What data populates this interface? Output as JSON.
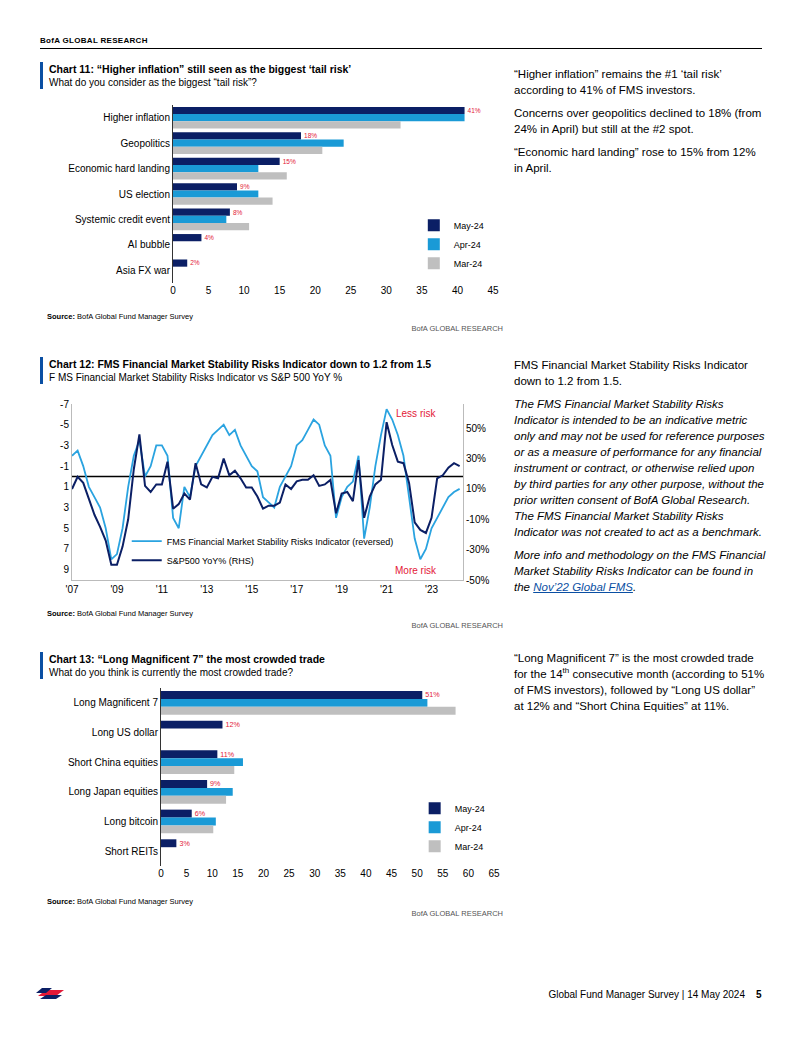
{
  "header": "BofA GLOBAL RESEARCH",
  "chart_data": [
    {
      "type": "bar",
      "title": "Chart 11: “Higher inflation” still seen as the biggest ‘tail risk’",
      "subtitle": "What do you consider as the biggest “tail risk”?",
      "source_label": "Source:",
      "source": "BofA Global Fund Manager Survey",
      "credit": "BofA GLOBAL RESEARCH",
      "orientation": "horizontal",
      "data_labels": true,
      "legend": "lower-right",
      "grid": false,
      "categories": [
        "Higher inflation",
        "Geopolitics",
        "Economic hard landing",
        "US election",
        "Systemic credit event",
        "AI bubble",
        "Asia FX war"
      ],
      "series": [
        {
          "name": "May-24",
          "color": "#0b1f65",
          "values": [
            41,
            18,
            15,
            9,
            8,
            4,
            2
          ],
          "value_labels": [
            "41%",
            "18%",
            "15%",
            "9%",
            "8%",
            "4%",
            "2%"
          ]
        },
        {
          "name": "Apr-24",
          "color": "#1a9ad6",
          "values": [
            41,
            24,
            12,
            12,
            7.5,
            null,
            null
          ]
        },
        {
          "name": "Mar-24",
          "color": "#bfbfbf",
          "values": [
            32,
            21,
            16,
            14,
            10.7,
            null,
            null
          ]
        }
      ],
      "xlim": [
        0,
        45
      ],
      "xticks": [
        0,
        5,
        10,
        15,
        20,
        25,
        30,
        35,
        40,
        45
      ]
    },
    {
      "type": "line",
      "title": "Chart 12: FMS Financial Market Stability Risks Indicator down to 1.2 from 1.5",
      "subtitle": "F MS Financial Market Stability Risks Indicator vs S&P 500 YoY %",
      "source_label": "Source:",
      "source": "BofA Global Fund Manager Survey",
      "credit": "BofA GLOBAL RESEARCH",
      "legend": "lower-left",
      "grid": false,
      "x": [
        2007,
        2007.25,
        2007.5,
        2007.75,
        2008,
        2008.25,
        2008.5,
        2008.75,
        2009,
        2009.25,
        2009.5,
        2009.75,
        2010,
        2010.25,
        2010.5,
        2010.75,
        2011,
        2011.25,
        2011.5,
        2011.75,
        2012,
        2012.25,
        2012.5,
        2012.75,
        2013,
        2013.25,
        2013.5,
        2013.75,
        2014,
        2014.25,
        2014.5,
        2014.75,
        2015,
        2015.25,
        2015.5,
        2015.75,
        2016,
        2016.25,
        2016.5,
        2016.75,
        2017,
        2017.25,
        2017.5,
        2017.75,
        2018,
        2018.25,
        2018.5,
        2018.75,
        2019,
        2019.25,
        2019.5,
        2019.75,
        2020,
        2020.25,
        2020.5,
        2020.75,
        2021,
        2021.25,
        2021.5,
        2021.75,
        2022,
        2022.25,
        2022.5,
        2022.75,
        2023,
        2023.25,
        2023.5,
        2023.75,
        2024,
        2024.25
      ],
      "series": [
        {
          "name": "FMS Financial Market Stability Risks Indicator (reversed)",
          "color": "#2aa3e0",
          "axis": "y",
          "values": [
            -2,
            -2.5,
            -1,
            1,
            2,
            3,
            5,
            8,
            7.5,
            5,
            1,
            -2,
            -3.5,
            0,
            -1,
            -3,
            -3,
            -2,
            4,
            5,
            1,
            2,
            -1,
            -2,
            -3,
            -4,
            -4.5,
            -5,
            -4,
            -4.5,
            -3,
            -2,
            -1,
            -0.5,
            2,
            2.5,
            3,
            1,
            0,
            -1,
            -3,
            -3.5,
            -4.5,
            -5.5,
            -5,
            -3,
            -2,
            4,
            2,
            1,
            0.5,
            -2,
            6,
            3,
            -1,
            -4,
            -6.5,
            -5.5,
            -4,
            -2,
            2,
            6,
            8,
            7,
            5,
            4,
            3,
            2,
            1.5,
            1.2
          ]
        },
        {
          "name": "S&P500 YoY% (RHS)",
          "color": "#0b1f65",
          "axis": "y2",
          "values": [
            10,
            18,
            14,
            3,
            -7,
            -15,
            -24,
            -40,
            -40,
            -28,
            -10,
            23,
            46,
            12,
            8,
            13,
            13,
            28,
            -3,
            0,
            7,
            3,
            27,
            13,
            11,
            18,
            17,
            30,
            19,
            22,
            17,
            11,
            11,
            5,
            -3,
            -1,
            -1,
            1,
            13,
            10,
            15,
            16,
            16,
            19,
            12,
            13,
            16,
            -6,
            7,
            8,
            2,
            29,
            -9,
            5,
            13,
            16,
            54,
            39,
            28,
            27,
            14,
            -12,
            -17,
            -19,
            -9,
            17,
            19,
            24,
            27,
            25
          ]
        }
      ],
      "hline": 0,
      "annotations": [
        {
          "text": "Less risk"
        },
        {
          "text": "More risk"
        }
      ],
      "xlim": [
        2007,
        2024.4
      ],
      "xticks": [
        {
          "value": 2007,
          "label": "'07"
        },
        {
          "value": 2009,
          "label": "'09"
        },
        {
          "value": 2011,
          "label": "'11"
        },
        {
          "value": 2013,
          "label": "'13"
        },
        {
          "value": 2015,
          "label": "'15"
        },
        {
          "value": 2017,
          "label": "'17"
        },
        {
          "value": 2019,
          "label": "'19"
        },
        {
          "value": 2021,
          "label": "'21"
        },
        {
          "value": 2023,
          "label": "'23"
        }
      ],
      "ylim": [
        10,
        -7
      ],
      "yticks": [
        -7,
        -5,
        -3,
        -1,
        1,
        3,
        5,
        7,
        9
      ],
      "y2lim": [
        -50,
        66
      ],
      "y2ticks": [
        {
          "value": 50,
          "label": "50%"
        },
        {
          "value": 30,
          "label": "30%"
        },
        {
          "value": 10,
          "label": "10%"
        },
        {
          "value": -10,
          "label": "-10%"
        },
        {
          "value": -30,
          "label": "-30%"
        },
        {
          "value": -50,
          "label": "-50%"
        }
      ]
    },
    {
      "type": "bar",
      "title": "Chart 13: “Long Magnificent 7” the most crowded trade",
      "subtitle": "What do you think is currently the most crowded trade?",
      "source_label": "Source:",
      "source": "BofA Global Fund Manager Survey",
      "credit": "BofA GLOBAL RESEARCH",
      "orientation": "horizontal",
      "data_labels": true,
      "legend": "lower-right",
      "grid": false,
      "categories": [
        "Long Magnificent 7",
        "Long US dollar",
        "Short China equities",
        "Long Japan equities",
        "Long bitcoin",
        "Short REITs"
      ],
      "series": [
        {
          "name": "May-24",
          "color": "#0b1f65",
          "values": [
            51,
            12,
            11,
            9,
            6,
            3
          ],
          "value_labels": [
            "51%",
            "12%",
            "11%",
            "9%",
            "6%",
            "3%"
          ]
        },
        {
          "name": "Apr-24",
          "color": "#1a9ad6",
          "values": [
            52,
            null,
            16,
            14,
            10.7,
            null
          ]
        },
        {
          "name": "Mar-24",
          "color": "#bfbfbf",
          "values": [
            57.5,
            null,
            14.3,
            12.7,
            10.2,
            null
          ]
        }
      ],
      "xlim": [
        0,
        65
      ],
      "xticks": [
        0,
        5,
        10,
        15,
        20,
        25,
        30,
        35,
        40,
        45,
        50,
        55,
        60,
        65
      ]
    }
  ],
  "commentary": [
    [
      [
        {
          "text": "“Higher inflation” remains the #1 ‘tail risk’ according to 41% of FMS investors."
        }
      ],
      [
        {
          "text": "Concerns over geopolitics declined to 18% (from 24% in April) but still at the #2 spot."
        }
      ],
      [
        {
          "text": "“Economic hard landing” rose to 15% from 12% in April."
        }
      ]
    ],
    [
      [
        {
          "text": "FMS Financial Market Stability Risks Indicator down to 1.2 from 1.5."
        }
      ],
      [
        {
          "text": "The FMS Financial Market Stability Risks Indicator is intended to be an indicative metric only and may not be used for reference purposes or as a measure of performance for any financial instrument or contract, or otherwise relied upon by third parties for any other purpose, without the prior written consent of BofA Global Research. The FMS Financial Market Stability Risks Indicator was not created to act as a benchmark.",
          "style": "italic"
        }
      ],
      [
        {
          "text": "More info and methodology on the FMS Financial Market Stability Risks Indicator can be found in the ",
          "style": "italic"
        },
        {
          "text": "Nov’22 Global FMS",
          "style": "link"
        },
        {
          "text": ".",
          "style": "italic"
        }
      ]
    ],
    [
      [
        {
          "text": "“Long Magnificent 7” is the most crowded trade for the 14"
        },
        {
          "text": "th",
          "style": "sup"
        },
        {
          "text": " consecutive month (according to 51% of FMS investors), followed by “Long US dollar” at 12% and “Short China Equities” at 11%."
        }
      ]
    ]
  ],
  "footer": {
    "text": "Global Fund Manager Survey | 14 May 2024",
    "page": 5
  }
}
